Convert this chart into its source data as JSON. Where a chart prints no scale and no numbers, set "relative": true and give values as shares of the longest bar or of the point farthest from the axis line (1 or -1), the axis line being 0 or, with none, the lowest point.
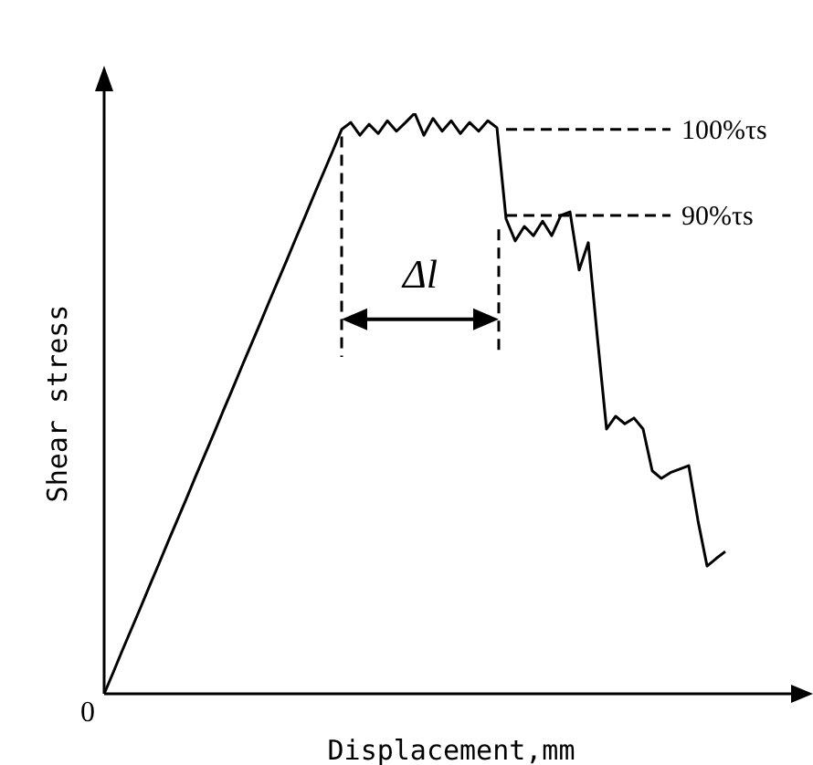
{
  "chart_data": {
    "type": "line",
    "relative": true,
    "xlabel": "Displacement,mm",
    "ylabel": "Shear stress",
    "marker": "none",
    "categories": [
      null,
      null,
      null,
      null,
      null,
      null,
      null,
      null,
      null,
      null,
      null,
      null,
      null,
      null,
      null,
      null,
      null,
      null,
      null,
      null,
      null,
      null,
      null,
      null,
      null,
      null,
      null,
      null,
      null,
      null,
      null,
      null,
      null,
      null,
      null,
      null,
      null,
      null,
      null,
      null,
      null,
      null,
      null,
      null,
      null,
      null,
      null,
      null,
      null,
      null,
      null,
      null,
      null,
      null,
      null,
      null,
      null,
      null,
      null,
      null,
      null,
      null,
      null,
      null,
      null,
      null,
      null,
      null,
      null,
      null,
      null,
      null,
      null,
      null,
      null,
      null,
      null
    ],
    "series": [
      {
        "color": "#000000",
        "line_style": "solid",
        "values": [
          0,
          0.037,
          0.075,
          0.112,
          0.149,
          0.187,
          0.224,
          0.262,
          0.299,
          0.336,
          0.374,
          0.411,
          0.448,
          0.486,
          0.523,
          0.561,
          0.598,
          0.635,
          0.673,
          0.71,
          0.747,
          0.785,
          0.822,
          0.86,
          0.897,
          0.934,
          0.972,
          0.984,
          0.962,
          0.981,
          0.965,
          0.987,
          0.969,
          0.984,
          1,
          0.962,
          0.991,
          0.969,
          0.987,
          0.965,
          0.984,
          0.969,
          0.987,
          0.975,
          0.818,
          0.78,
          0.805,
          0.789,
          0.814,
          0.789,
          0.824,
          0.83,
          0.73,
          0.777,
          0.613,
          0.456,
          0.478,
          0.465,
          0.475,
          0.456,
          0.384,
          0.371,
          0.381,
          0.387,
          0.393,
          0.299,
          0.22,
          0.233,
          0.245,
          null,
          null,
          null,
          null,
          null,
          null,
          null,
          null
        ]
      },
      {
        "name": "100%τs",
        "color": "#000000",
        "line_style": "dashed",
        "values": [
          null,
          null,
          null,
          null,
          null,
          null,
          null,
          null,
          null,
          null,
          null,
          null,
          null,
          null,
          null,
          null,
          null,
          null,
          null,
          null,
          null,
          null,
          null,
          null,
          null,
          null,
          null,
          null,
          null,
          null,
          null,
          null,
          null,
          null,
          null,
          null,
          null,
          null,
          null,
          null,
          null,
          null,
          null,
          null,
          0.972,
          0.972,
          0.972,
          0.972,
          0.972,
          0.972,
          0.972,
          0.972,
          0.972,
          0.972,
          0.972,
          0.972,
          0.972,
          0.972,
          0.972,
          0.972,
          0.972,
          0.972,
          0.972,
          null,
          null,
          null,
          null,
          null,
          null,
          null,
          null,
          null,
          null,
          null,
          null,
          null,
          null
        ]
      },
      {
        "name": "90%τs",
        "color": "#000000",
        "line_style": "dashed",
        "values": [
          null,
          null,
          null,
          null,
          null,
          null,
          null,
          null,
          null,
          null,
          null,
          null,
          null,
          null,
          null,
          null,
          null,
          null,
          null,
          null,
          null,
          null,
          null,
          null,
          null,
          null,
          null,
          null,
          null,
          null,
          null,
          null,
          null,
          null,
          null,
          null,
          null,
          null,
          null,
          null,
          null,
          null,
          null,
          null,
          0.824,
          0.824,
          0.824,
          0.824,
          0.824,
          0.824,
          0.824,
          0.824,
          0.824,
          0.824,
          0.824,
          0.824,
          0.824,
          0.824,
          0.824,
          0.824,
          0.824,
          0.824,
          0.824,
          null,
          null,
          null,
          null,
          null,
          null,
          null,
          null,
          null,
          null,
          null,
          null,
          null,
          null
        ]
      }
    ],
    "annotations": [
      "Δl",
      "0"
    ]
  }
}
